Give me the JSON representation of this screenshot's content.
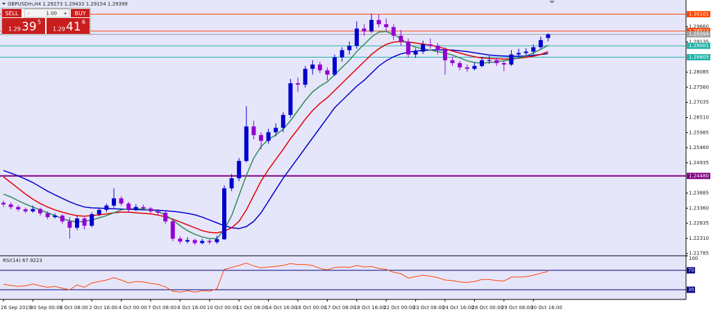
{
  "trade_panel": {
    "sell": "SELL",
    "buy": "BUY",
    "lot": "1.00",
    "bid": {
      "big": "1.29",
      "main": "39",
      "pip": "5"
    },
    "ask": {
      "big": "1.29",
      "main": "41",
      "pip": "6"
    }
  },
  "chart_data": {
    "type": "candlestick",
    "title": "GBPUSDm,H4 1.29273 1.29433 1.29154 1.29399",
    "background": "#e6e6fa",
    "candle_colors": {
      "up": "#0000cd",
      "down": "#9400d3"
    },
    "categories": [
      "26 Sep 2019",
      null,
      null,
      null,
      "30 Sep 00:00",
      null,
      null,
      null,
      "1 Oct 08:00",
      null,
      null,
      null,
      "2 Oct 16:00",
      null,
      null,
      null,
      "4 Oct 00:00",
      null,
      null,
      null,
      "7 Oct 08:00",
      null,
      null,
      null,
      "8 Oct 16:00",
      null,
      null,
      null,
      "10 Oct 00:00",
      null,
      null,
      null,
      "11 Oct 08:00",
      null,
      null,
      null,
      "14 Oct 16:00",
      null,
      null,
      null,
      "16 Oct 00:00",
      null,
      null,
      null,
      "17 Oct 08:00",
      null,
      null,
      null,
      "18 Oct 16:00",
      null,
      null,
      null,
      "22 Oct 00:00",
      null,
      null,
      null,
      "23 Oct 08:00",
      null,
      null,
      null,
      "24 Oct 16:00",
      null,
      null,
      null,
      "28 Oct 00:00",
      null,
      null,
      null,
      "29 Oct 08:00",
      null,
      null,
      null,
      "30 Oct 16:00",
      null,
      null
    ],
    "candles": [
      [
        1.2355,
        1.2362,
        1.234,
        1.2349
      ],
      [
        1.2349,
        1.2356,
        1.2332,
        1.234
      ],
      [
        1.234,
        1.2346,
        1.2325,
        1.2332
      ],
      [
        1.2332,
        1.2338,
        1.2318,
        1.2325
      ],
      [
        1.2325,
        1.2345,
        1.232,
        1.2333
      ],
      [
        1.2333,
        1.2338,
        1.231,
        1.2318
      ],
      [
        1.2318,
        1.2325,
        1.2298,
        1.2305
      ],
      [
        1.2305,
        1.2318,
        1.23,
        1.231
      ],
      [
        1.231,
        1.2315,
        1.2282,
        1.229
      ],
      [
        1.229,
        1.2305,
        1.223,
        1.2268
      ],
      [
        1.2268,
        1.231,
        1.226,
        1.23
      ],
      [
        1.23,
        1.2305,
        1.2262,
        1.2275
      ],
      [
        1.2275,
        1.2322,
        1.227,
        1.2315
      ],
      [
        1.2315,
        1.2338,
        1.2308,
        1.233
      ],
      [
        1.233,
        1.2352,
        1.2322,
        1.2345
      ],
      [
        1.2345,
        1.2405,
        1.2338,
        1.237
      ],
      [
        1.237,
        1.2378,
        1.2345,
        1.2352
      ],
      [
        1.2352,
        1.2358,
        1.2322,
        1.233
      ],
      [
        1.233,
        1.235,
        1.2325,
        1.234
      ],
      [
        1.234,
        1.2348,
        1.2328,
        1.2335
      ],
      [
        1.2335,
        1.234,
        1.2318,
        1.2325
      ],
      [
        1.2325,
        1.2332,
        1.2312,
        1.232
      ],
      [
        1.232,
        1.2325,
        1.2282,
        1.229
      ],
      [
        1.229,
        1.2295,
        1.2222,
        1.223
      ],
      [
        1.223,
        1.2238,
        1.2212,
        1.222
      ],
      [
        1.222,
        1.2235,
        1.2213,
        1.2225
      ],
      [
        1.2225,
        1.223,
        1.2208,
        1.2215
      ],
      [
        1.2215,
        1.223,
        1.221,
        1.2222
      ],
      [
        1.2222,
        1.2228,
        1.221,
        1.2218
      ],
      [
        1.2218,
        1.224,
        1.2212,
        1.2228
      ],
      [
        1.2228,
        1.2415,
        1.2225,
        1.2405
      ],
      [
        1.2405,
        1.2455,
        1.2395,
        1.244
      ],
      [
        1.244,
        1.251,
        1.243,
        1.25
      ],
      [
        1.25,
        1.269,
        1.2495,
        1.262
      ],
      [
        1.262,
        1.264,
        1.2575,
        1.259
      ],
      [
        1.259,
        1.26,
        1.254,
        1.257
      ],
      [
        1.257,
        1.2612,
        1.256,
        1.26
      ],
      [
        1.26,
        1.263,
        1.2585,
        1.2615
      ],
      [
        1.2615,
        1.267,
        1.26,
        1.266
      ],
      [
        1.266,
        1.2785,
        1.265,
        1.277
      ],
      [
        1.277,
        1.279,
        1.274,
        1.2765
      ],
      [
        1.2765,
        1.283,
        1.2755,
        1.282
      ],
      [
        1.282,
        1.285,
        1.28,
        1.2835
      ],
      [
        1.2835,
        1.2845,
        1.2805,
        1.2815
      ],
      [
        1.2815,
        1.2825,
        1.278,
        1.28
      ],
      [
        1.28,
        1.287,
        1.2795,
        1.286
      ],
      [
        1.286,
        1.2895,
        1.2845,
        1.2885
      ],
      [
        1.2885,
        1.2915,
        1.287,
        1.29
      ],
      [
        1.29,
        1.2985,
        1.289,
        1.296
      ],
      [
        1.296,
        1.2975,
        1.2935,
        1.295
      ],
      [
        1.295,
        1.3012,
        1.2945,
        1.299
      ],
      [
        1.299,
        1.301,
        1.2965,
        1.2975
      ],
      [
        1.2975,
        1.2995,
        1.295,
        1.2965
      ],
      [
        1.2965,
        1.2975,
        1.292,
        1.2935
      ],
      [
        1.2935,
        1.2955,
        1.29,
        1.2915
      ],
      [
        1.2915,
        1.2925,
        1.286,
        1.287
      ],
      [
        1.287,
        1.2892,
        1.2858,
        1.288
      ],
      [
        1.288,
        1.2918,
        1.2872,
        1.2905
      ],
      [
        1.2905,
        1.2925,
        1.289,
        1.29
      ],
      [
        1.29,
        1.291,
        1.287,
        1.2885
      ],
      [
        1.2885,
        1.2895,
        1.28,
        1.285
      ],
      [
        1.285,
        1.2862,
        1.283,
        1.284
      ],
      [
        1.284,
        1.2848,
        1.2815,
        1.2825
      ],
      [
        1.2825,
        1.2835,
        1.281,
        1.282
      ],
      [
        1.282,
        1.2842,
        1.2815,
        1.283
      ],
      [
        1.283,
        1.2862,
        1.2825,
        1.285
      ],
      [
        1.285,
        1.2865,
        1.2838,
        1.285
      ],
      [
        1.285,
        1.2858,
        1.283,
        1.284
      ],
      [
        1.284,
        1.285,
        1.2812,
        1.2835
      ],
      [
        1.2835,
        1.2885,
        1.283,
        1.287
      ],
      [
        1.287,
        1.289,
        1.2858,
        1.2875
      ],
      [
        1.2875,
        1.2892,
        1.2862,
        1.288
      ],
      [
        1.288,
        1.2905,
        1.287,
        1.2895
      ],
      [
        1.2895,
        1.2932,
        1.2888,
        1.292
      ],
      [
        1.29273,
        1.29433,
        1.29154,
        1.29399
      ]
    ],
    "moving_averages": [
      {
        "color": "#0000cd",
        "values": [
          1.2467,
          1.2458,
          1.2448,
          1.2437,
          1.2425,
          1.241,
          1.2395,
          1.2382,
          1.237,
          1.2358,
          1.2348,
          1.234,
          1.2337,
          1.2336,
          1.2335,
          1.2334,
          1.2333,
          1.2332,
          1.2331,
          1.233,
          1.233,
          1.2329,
          1.2327,
          1.2325,
          1.2322,
          1.2318,
          1.2313,
          1.2305,
          1.2295,
          1.2285,
          1.2275,
          1.2268,
          1.2265,
          1.2272,
          1.229,
          1.232,
          1.236,
          1.24,
          1.244,
          1.2475,
          1.251,
          1.2545,
          1.258,
          1.2615,
          1.265,
          1.2685,
          1.271,
          1.2735,
          1.276,
          1.278,
          1.2805,
          1.283,
          1.2848,
          1.2862,
          1.2872,
          1.2878,
          1.2882,
          1.2884,
          1.2885,
          1.2886,
          1.2886,
          1.2885,
          1.2883,
          1.288,
          1.2876,
          1.2872,
          1.2868,
          1.2866,
          1.2865,
          1.2864,
          1.2864,
          1.2865,
          1.2867,
          1.287,
          1.2873
        ]
      },
      {
        "color": "#e00000",
        "values": [
          1.2445,
          1.2425,
          1.2405,
          1.2385,
          1.2367,
          1.2352,
          1.234,
          1.233,
          1.2322,
          1.2315,
          1.231,
          1.2308,
          1.231,
          1.2313,
          1.2316,
          1.232,
          1.2322,
          1.2322,
          1.232,
          1.2318,
          1.2316,
          1.2312,
          1.2306,
          1.2298,
          1.2288,
          1.2278,
          1.2268,
          1.2258,
          1.2252,
          1.225,
          1.2256,
          1.2268,
          1.229,
          1.233,
          1.238,
          1.243,
          1.247,
          1.2505,
          1.254,
          1.2578,
          1.261,
          1.2645,
          1.2675,
          1.27,
          1.272,
          1.2745,
          1.277,
          1.2795,
          1.282,
          1.2845,
          1.287,
          1.289,
          1.2905,
          1.2913,
          1.2915,
          1.2913,
          1.291,
          1.2906,
          1.2902,
          1.2897,
          1.289,
          1.2882,
          1.2875,
          1.2868,
          1.2862,
          1.2858,
          1.2856,
          1.2855,
          1.2854,
          1.2855,
          1.2857,
          1.286,
          1.2864,
          1.287,
          1.288
        ]
      },
      {
        "color": "#2e8b57",
        "values": [
          1.2385,
          1.2375,
          1.2362,
          1.235,
          1.234,
          1.233,
          1.232,
          1.231,
          1.23,
          1.2292,
          1.2288,
          1.229,
          1.2295,
          1.2302,
          1.231,
          1.232,
          1.233,
          1.2334,
          1.2334,
          1.2333,
          1.233,
          1.2325,
          1.2312,
          1.2295,
          1.2275,
          1.2258,
          1.2245,
          1.2236,
          1.223,
          1.223,
          1.2262,
          1.231,
          1.238,
          1.245,
          1.251,
          1.255,
          1.2575,
          1.259,
          1.261,
          1.264,
          1.2675,
          1.271,
          1.274,
          1.276,
          1.2775,
          1.28,
          1.2825,
          1.285,
          1.288,
          1.2905,
          1.293,
          1.2948,
          1.295,
          1.294,
          1.2925,
          1.2905,
          1.2895,
          1.289,
          1.2885,
          1.288,
          1.2875,
          1.2868,
          1.2858,
          1.2848,
          1.2842,
          1.284,
          1.2842,
          1.2845,
          1.2848,
          1.2852,
          1.2858,
          1.2865,
          1.2875,
          1.2888,
          1.2902
        ]
      }
    ],
    "ylim": [
      1.2173,
      1.3052
    ],
    "yticks": [
      {
        "value": 1.21785,
        "label": "1.21785"
      },
      {
        "value": 1.2231,
        "label": "1.22310"
      },
      {
        "value": 1.22835,
        "label": "1.22835"
      },
      {
        "value": 1.2336,
        "label": "1.23360"
      },
      {
        "value": 1.23885,
        "label": "1.23885"
      },
      {
        "value": 1.24935,
        "label": "1.24935"
      },
      {
        "value": 1.2546,
        "label": "1.25460"
      },
      {
        "value": 1.25985,
        "label": "1.25985"
      },
      {
        "value": 1.2651,
        "label": "1.26510"
      },
      {
        "value": 1.27035,
        "label": "1.27035"
      },
      {
        "value": 1.2756,
        "label": "1.27560"
      },
      {
        "value": 1.28085,
        "label": "1.28085"
      },
      {
        "value": 1.29135,
        "label": "1.29135"
      },
      {
        "value": 1.2966,
        "label": "1.29660"
      }
    ],
    "levels": [
      {
        "value": 1.30101,
        "label": "1.30101",
        "color": "#ff4500"
      },
      {
        "value": 1.29513,
        "label": "1.29513",
        "color": "#ff4500"
      },
      {
        "value": 1.29399,
        "label": "1.29399",
        "color": "#a0a0a0"
      },
      {
        "value": 1.29001,
        "label": "1.29001",
        "color": "#20b2aa"
      },
      {
        "value": 1.28605,
        "label": "1.28605",
        "color": "#20b2aa"
      },
      {
        "value": 1.2448,
        "label": "1.24480",
        "color": "#800080"
      }
    ],
    "rsi": {
      "title": "RSI(14) 67.9223",
      "color": "#ff4500",
      "level_color": "#000080",
      "values": [
        41,
        39,
        37,
        38,
        42,
        38,
        35,
        37,
        33,
        30,
        40,
        35,
        44,
        47,
        50,
        55,
        50,
        44,
        47,
        46,
        43,
        41,
        36,
        27,
        25,
        28,
        25,
        28,
        27,
        32,
        72,
        76,
        80,
        85,
        79,
        75,
        77,
        78,
        80,
        84,
        82,
        82,
        80,
        74,
        71,
        76,
        77,
        76,
        80,
        77,
        78,
        74,
        72,
        66,
        63,
        54,
        57,
        60,
        58,
        55,
        50,
        49,
        46,
        45,
        47,
        51,
        51,
        49,
        48,
        56,
        56,
        57,
        60,
        64,
        67.9223
      ],
      "ylim": [
        10,
        100
      ],
      "yticks": [
        100
      ],
      "levels": [
        70,
        30
      ]
    }
  }
}
